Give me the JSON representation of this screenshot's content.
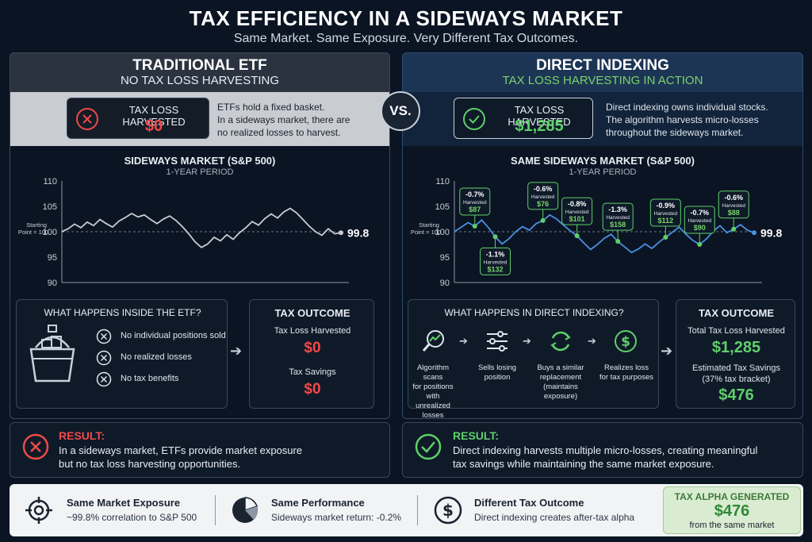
{
  "header": {
    "title": "TAX EFFICIENCY IN A SIDEWAYS MARKET",
    "subtitle": "Same Market. Same Exposure. Very Different Tax Outcomes."
  },
  "vs_label": "VS.",
  "left": {
    "title": "TRADITIONAL ETF",
    "subtitle": "NO TAX LOSS HARVESTING",
    "harvest_label": "TAX LOSS HARVESTED",
    "harvest_value": "$0",
    "desc": [
      "ETFs hold a fixed basket.",
      "In a sideways market, there are",
      "no realized losses to harvest."
    ],
    "chart_title": "SIDEWAYS MARKET (S&P 500)",
    "chart_period": "1-YEAR PERIOD",
    "inside_title": "WHAT HAPPENS INSIDE THE ETF?",
    "inside_items": [
      "No individual positions sold",
      "No realized losses",
      "No tax benefits"
    ],
    "outcome_title": "TAX OUTCOME",
    "outcome_label1": "Tax Loss Harvested",
    "outcome_value1": "$0",
    "outcome_label2": "Tax Savings",
    "outcome_value2": "$0",
    "result_title": "RESULT:",
    "result_lines": [
      "In a sideways market, ETFs provide market exposure",
      "but no tax loss harvesting opportunities."
    ]
  },
  "right": {
    "title": "DIRECT INDEXING",
    "subtitle": "TAX LOSS HARVESTING IN ACTION",
    "harvest_label": "TAX LOSS HARVESTED",
    "harvest_value": "$1,285",
    "desc": [
      "Direct indexing owns individual stocks.",
      "The algorithm harvests micro-losses",
      "throughout the sideways market."
    ],
    "chart_title": "SAME SIDEWAYS MARKET (S&P 500)",
    "chart_period": "1-YEAR PERIOD",
    "inside_title": "WHAT HAPPENS IN DIRECT INDEXING?",
    "steps": [
      [
        "Algorithm scans",
        "for positions",
        "with unrealized",
        "losses"
      ],
      [
        "Sells losing",
        "position"
      ],
      [
        "Buys a similar",
        "replacement",
        "(maintains",
        "exposure)"
      ],
      [
        "Realizes loss",
        "for tax purposes"
      ]
    ],
    "outcome_title": "TAX OUTCOME",
    "outcome_label1": "Total Tax Loss Harvested",
    "outcome_value1": "$1,285",
    "outcome_label2": "Estimated Tax Savings",
    "outcome_label2b": "(37% tax bracket)",
    "outcome_value2": "$476",
    "result_title": "RESULT:",
    "result_lines": [
      "Direct indexing harvests multiple micro-losses, creating meaningful",
      "tax savings while maintaining the same market exposure."
    ]
  },
  "footer": {
    "items": [
      {
        "title": "Same Market Exposure",
        "sub": "~99.8% correlation to S&P 500"
      },
      {
        "title": "Same Performance",
        "sub": "Sideways market return: -0.2%"
      },
      {
        "title": "Different Tax Outcome",
        "sub": "Direct indexing creates after-tax alpha"
      }
    ],
    "alpha_title": "TAX ALPHA GENERATED",
    "alpha_value": "$476",
    "alpha_sub": "from the same market"
  },
  "colors": {
    "red": "#ef4a48",
    "green": "#5fcf6a",
    "line_left": "#c8ccd2",
    "line_right": "#4a90e2"
  },
  "chart_data": [
    {
      "type": "line",
      "title": "SIDEWAYS MARKET (S&P 500)",
      "subtitle": "1-YEAR PERIOD",
      "ylim": [
        90,
        110
      ],
      "yticks": [
        110,
        105,
        100,
        95,
        90
      ],
      "baseline_label": "Starting Point = 100",
      "end_label": "99.8",
      "values": [
        100,
        100.6,
        101.5,
        100.8,
        101.9,
        101.2,
        102.4,
        101.6,
        100.9,
        102.1,
        102.8,
        103.6,
        102.9,
        103.3,
        102.4,
        101.6,
        102.5,
        103.1,
        102.2,
        101.0,
        99.6,
        98.0,
        96.9,
        97.6,
        98.9,
        98.2,
        99.4,
        98.5,
        99.8,
        100.8,
        102.0,
        101.3,
        102.6,
        103.5,
        102.7,
        103.9,
        104.6,
        103.7,
        102.4,
        101.1,
        100.0,
        99.3,
        100.6,
        99.6,
        99.8
      ]
    },
    {
      "type": "line",
      "title": "SAME SIDEWAYS MARKET (S&P 500)",
      "subtitle": "1-YEAR PERIOD",
      "ylim": [
        90,
        110
      ],
      "yticks": [
        110,
        105,
        100,
        95,
        90
      ],
      "baseline_label": "Starting Point = 100",
      "end_label": "99.8",
      "values": [
        100,
        100.9,
        101.8,
        101.1,
        102.3,
        100.8,
        99.0,
        97.6,
        98.6,
        100.0,
        101.0,
        100.3,
        101.6,
        102.2,
        103.3,
        102.5,
        101.3,
        100.2,
        99.2,
        97.8,
        96.5,
        97.5,
        98.7,
        99.5,
        98.1,
        97.0,
        95.9,
        96.6,
        97.6,
        96.7,
        97.9,
        98.9,
        99.9,
        100.9,
        99.5,
        98.3,
        97.5,
        98.6,
        100.1,
        101.2,
        99.8,
        100.5,
        101.4,
        100.3,
        99.8
      ],
      "annotations": [
        {
          "index": 3,
          "pct": "-0.7%",
          "text": "Harvested",
          "amount": "$87",
          "pos": "above"
        },
        {
          "index": 6,
          "pct": "-1.1%",
          "text": "Harvested",
          "amount": "$132",
          "pos": "below"
        },
        {
          "index": 13,
          "pct": "-0.6%",
          "text": "Harvested",
          "amount": "$76",
          "pos": "above"
        },
        {
          "index": 18,
          "pct": "-0.8%",
          "text": "Harvested",
          "amount": "$101",
          "pos": "above"
        },
        {
          "index": 24,
          "pct": "-1.3%",
          "text": "Harvested",
          "amount": "$158",
          "pos": "above"
        },
        {
          "index": 31,
          "pct": "-0.9%",
          "text": "Harvested",
          "amount": "$112",
          "pos": "above"
        },
        {
          "index": 36,
          "pct": "-0.7%",
          "text": "Harvested",
          "amount": "$90",
          "pos": "above"
        },
        {
          "index": 41,
          "pct": "-0.6%",
          "text": "Harvested",
          "amount": "$88",
          "pos": "above"
        }
      ]
    }
  ]
}
